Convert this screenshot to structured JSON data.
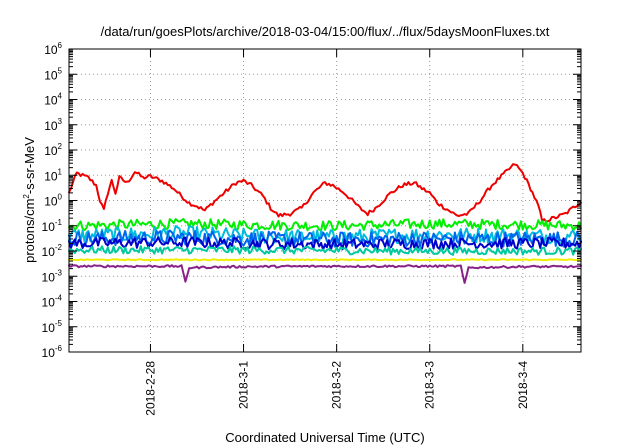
{
  "chart_data": {
    "type": "line",
    "title": "/data/run/goesPlots/archive/2018-03-04/15:00/flux/../flux/5daysMoonFluxes.txt",
    "xlabel": "Coordinated Universal Time (UTC)",
    "ylabel": {
      "base": "protons/cm",
      "sup": "2",
      "rest": "-s-sr-MeV"
    },
    "y_scale": "log",
    "ylim": [
      1e-06,
      1000000.0
    ],
    "y_ticks": [
      {
        "base": "10",
        "exp": "6",
        "value": 1000000.0
      },
      {
        "base": "10",
        "exp": "5",
        "value": 100000.0
      },
      {
        "base": "10",
        "exp": "4",
        "value": 10000.0
      },
      {
        "base": "10",
        "exp": "3",
        "value": 1000.0
      },
      {
        "base": "10",
        "exp": "2",
        "value": 100.0
      },
      {
        "base": "10",
        "exp": "1",
        "value": 10.0
      },
      {
        "base": "10",
        "exp": "0",
        "value": 1
      },
      {
        "base": "10",
        "exp": "-1",
        "value": 0.1
      },
      {
        "base": "10",
        "exp": "-2",
        "value": 0.01
      },
      {
        "base": "10",
        "exp": "-3",
        "value": 0.001
      },
      {
        "base": "10",
        "exp": "-4",
        "value": 0.0001
      },
      {
        "base": "10",
        "exp": "-5",
        "value": 1e-05
      },
      {
        "base": "10",
        "exp": "-6",
        "value": 1e-06
      }
    ],
    "xlim": [
      "2018-02-27 03:00",
      "2018-03-04 15:00"
    ],
    "x_ticks": [
      {
        "label": "2018-2-28",
        "value": "2018-02-28 00:00"
      },
      {
        "label": "2018-3-1",
        "value": "2018-03-01 00:00"
      },
      {
        "label": "2018-3-2",
        "value": "2018-03-02 00:00"
      },
      {
        "label": "2018-3-3",
        "value": "2018-03-03 00:00"
      },
      {
        "label": "2018-3-4",
        "value": "2018-03-04 00:00"
      }
    ],
    "grid": true,
    "series": [
      {
        "color": "#ee0000",
        "noise": 0.08,
        "points": [
          [
            "2018-02-27 03:00",
            2.0
          ],
          [
            "2018-02-27 05:00",
            12
          ],
          [
            "2018-02-27 08:00",
            8
          ],
          [
            "2018-02-27 10:00",
            4
          ],
          [
            "2018-02-27 11:00",
            1.0
          ],
          [
            "2018-02-27 12:00",
            0.4
          ],
          [
            "2018-02-27 13:00",
            2.0
          ],
          [
            "2018-02-27 14:00",
            6
          ],
          [
            "2018-02-27 15:00",
            2
          ],
          [
            "2018-02-27 16:00",
            8
          ],
          [
            "2018-02-27 18:00",
            5
          ],
          [
            "2018-02-27 20:00",
            14
          ],
          [
            "2018-02-27 22:00",
            8
          ],
          [
            "2018-02-28 00:00",
            9
          ],
          [
            "2018-02-28 03:00",
            6
          ],
          [
            "2018-02-28 06:00",
            3
          ],
          [
            "2018-02-28 08:00",
            1.5
          ],
          [
            "2018-02-28 10:00",
            0.8
          ],
          [
            "2018-02-28 12:00",
            0.6
          ],
          [
            "2018-02-28 14:00",
            0.4
          ],
          [
            "2018-02-28 16:00",
            0.8
          ],
          [
            "2018-02-28 19:00",
            2
          ],
          [
            "2018-02-28 22:00",
            5
          ],
          [
            "2018-03-01 00:00",
            6
          ],
          [
            "2018-03-01 02:00",
            4
          ],
          [
            "2018-03-01 05:00",
            1.5
          ],
          [
            "2018-03-01 07:00",
            0.5
          ],
          [
            "2018-03-01 09:00",
            0.25
          ],
          [
            "2018-03-01 12:00",
            0.3
          ],
          [
            "2018-03-01 15:00",
            0.5
          ],
          [
            "2018-03-01 18:00",
            2
          ],
          [
            "2018-03-01 21:00",
            5
          ],
          [
            "2018-03-01 23:00",
            4
          ],
          [
            "2018-03-02 02:00",
            2
          ],
          [
            "2018-03-02 04:00",
            1
          ],
          [
            "2018-03-02 06:00",
            0.5
          ],
          [
            "2018-03-02 08:00",
            0.3
          ],
          [
            "2018-03-02 10:00",
            0.5
          ],
          [
            "2018-03-02 14:00",
            2
          ],
          [
            "2018-03-02 17:00",
            4
          ],
          [
            "2018-03-02 20:00",
            5
          ],
          [
            "2018-03-02 22:00",
            3
          ],
          [
            "2018-03-03 00:00",
            2
          ],
          [
            "2018-03-03 02:00",
            0.8
          ],
          [
            "2018-03-03 04:00",
            0.5
          ],
          [
            "2018-03-03 07:00",
            0.25
          ],
          [
            "2018-03-03 10:00",
            0.3
          ],
          [
            "2018-03-03 13:00",
            1
          ],
          [
            "2018-03-03 16:00",
            4
          ],
          [
            "2018-03-03 20:00",
            15
          ],
          [
            "2018-03-03 22:00",
            28
          ],
          [
            "2018-03-04 00:00",
            12
          ],
          [
            "2018-03-04 02:00",
            3
          ],
          [
            "2018-03-04 04:00",
            0.6
          ],
          [
            "2018-03-04 05:00",
            0.15
          ],
          [
            "2018-03-04 08:00",
            0.2
          ],
          [
            "2018-03-04 11:00",
            0.3
          ],
          [
            "2018-03-04 15:00",
            0.9
          ]
        ]
      },
      {
        "color": "#00ee00",
        "noise": 0.2,
        "points": [
          [
            "2018-02-27 03:00",
            0.1
          ],
          [
            "2018-02-28 08:00",
            0.12
          ],
          [
            "2018-03-01 00:00",
            0.11
          ],
          [
            "2018-03-02 00:00",
            0.1
          ],
          [
            "2018-03-03 00:00",
            0.12
          ],
          [
            "2018-03-04 00:00",
            0.11
          ],
          [
            "2018-03-04 15:00",
            0.1
          ]
        ]
      },
      {
        "color": "#00bbdd",
        "noise": 0.3,
        "points": [
          [
            "2018-02-27 03:00",
            0.04
          ],
          [
            "2018-02-28 08:00",
            0.05
          ],
          [
            "2018-03-01 00:00",
            0.04
          ],
          [
            "2018-03-02 00:00",
            0.035
          ],
          [
            "2018-03-03 00:00",
            0.045
          ],
          [
            "2018-03-04 00:00",
            0.04
          ],
          [
            "2018-03-04 15:00",
            0.04
          ]
        ]
      },
      {
        "color": "#0066ee",
        "noise": 0.3,
        "points": [
          [
            "2018-02-27 03:00",
            0.03
          ],
          [
            "2018-02-28 08:00",
            0.035
          ],
          [
            "2018-03-01 00:00",
            0.03
          ],
          [
            "2018-03-02 00:00",
            0.028
          ],
          [
            "2018-03-03 00:00",
            0.03
          ],
          [
            "2018-03-04 00:00",
            0.03
          ],
          [
            "2018-03-04 15:00",
            0.03
          ]
        ]
      },
      {
        "color": "#0000cc",
        "noise": 0.22,
        "points": [
          [
            "2018-02-27 03:00",
            0.02
          ],
          [
            "2018-02-28 08:00",
            0.022
          ],
          [
            "2018-03-01 00:00",
            0.02
          ],
          [
            "2018-03-02 00:00",
            0.018
          ],
          [
            "2018-03-03 00:00",
            0.02
          ],
          [
            "2018-03-04 00:00",
            0.02
          ],
          [
            "2018-03-04 15:00",
            0.02
          ]
        ]
      },
      {
        "color": "#00c8a0",
        "noise": 0.15,
        "points": [
          [
            "2018-02-27 03:00",
            0.011
          ],
          [
            "2018-03-01 00:00",
            0.011
          ],
          [
            "2018-03-03 00:00",
            0.01
          ],
          [
            "2018-03-04 15:00",
            0.01
          ]
        ]
      },
      {
        "color": "#eeee00",
        "noise": 0.02,
        "points": [
          [
            "2018-02-27 03:00",
            0.0045
          ],
          [
            "2018-03-01 00:00",
            0.0045
          ],
          [
            "2018-03-03 00:00",
            0.0045
          ],
          [
            "2018-03-04 15:00",
            0.0045
          ]
        ]
      },
      {
        "color": "#882288",
        "noise": 0.04,
        "points": [
          [
            "2018-02-27 03:00",
            0.0025
          ],
          [
            "2018-02-28 08:00",
            0.0025
          ],
          [
            "2018-02-28 09:00",
            0.0006
          ],
          [
            "2018-02-28 10:00",
            0.0022
          ],
          [
            "2018-03-01 00:00",
            0.0024
          ],
          [
            "2018-03-02 00:00",
            0.0025
          ],
          [
            "2018-03-03 08:00",
            0.0025
          ],
          [
            "2018-03-03 09:00",
            0.0005
          ],
          [
            "2018-03-03 10:00",
            0.0022
          ],
          [
            "2018-03-04 00:00",
            0.0024
          ],
          [
            "2018-03-04 15:00",
            0.0024
          ]
        ]
      }
    ]
  }
}
